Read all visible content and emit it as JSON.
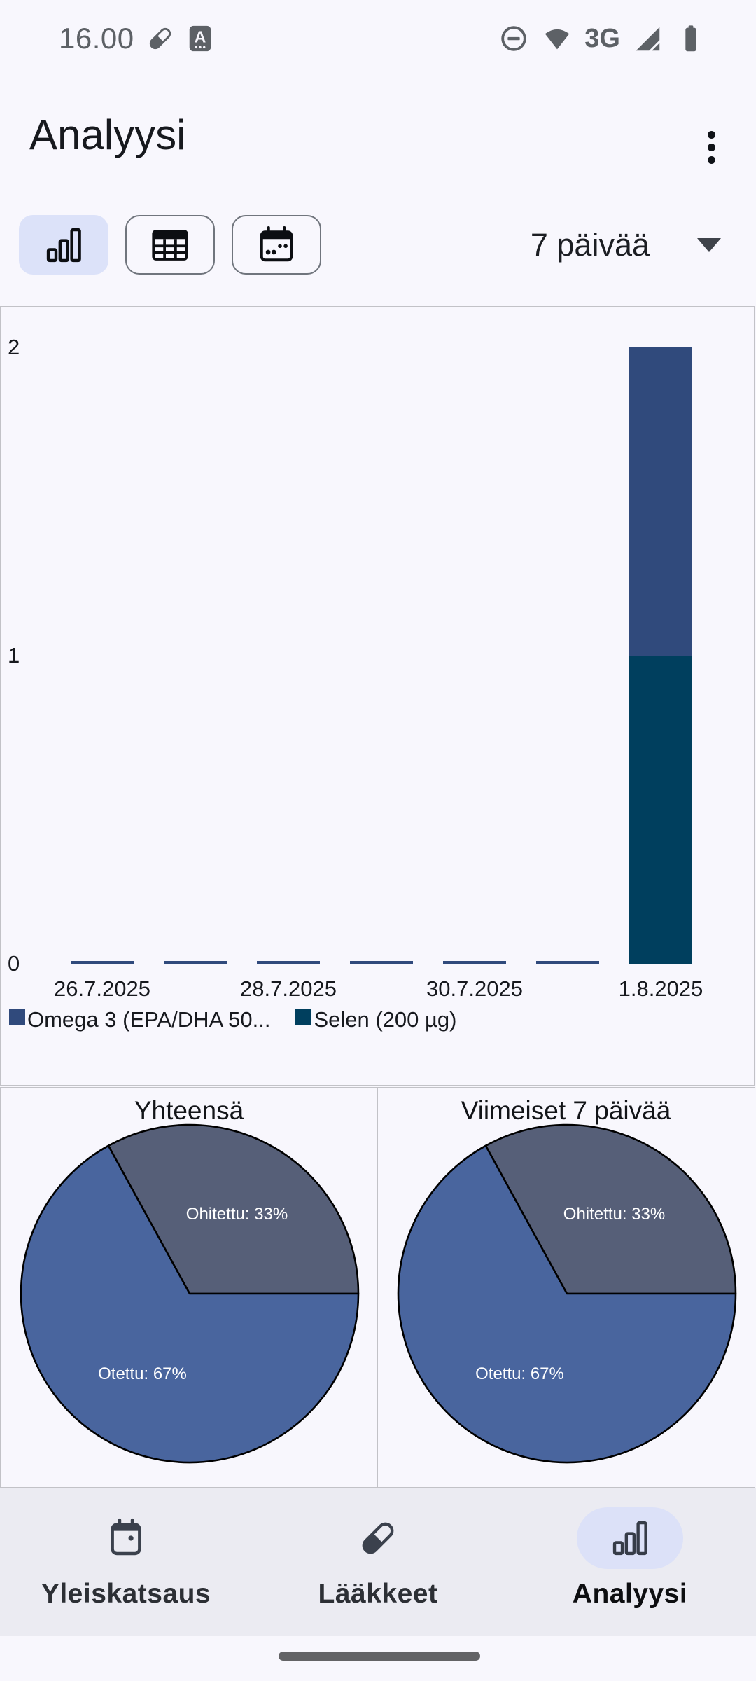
{
  "status_bar": {
    "time": "16.00",
    "network": "3G"
  },
  "header": {
    "title": "Analyysi"
  },
  "controls": {
    "toggles": [
      {
        "name": "bar-chart-view",
        "icon": "bar-chart-icon",
        "selected": true
      },
      {
        "name": "table-view",
        "icon": "table-icon",
        "selected": false
      },
      {
        "name": "calendar-view",
        "icon": "calendar-icon",
        "selected": false
      }
    ],
    "range_dropdown": {
      "value": "7 päivää"
    }
  },
  "chart_data": [
    {
      "type": "bar",
      "stacked": true,
      "x": [
        "26.7.2025",
        "27.7.2025",
        "28.7.2025",
        "29.7.2025",
        "30.7.2025",
        "31.7.2025",
        "1.8.2025"
      ],
      "x_tick_labels": [
        "26.7.2025",
        "28.7.2025",
        "30.7.2025",
        "1.8.2025"
      ],
      "series": [
        {
          "name": "Omega 3 (EPA/DHA 50...",
          "color": "#304a7c",
          "values": [
            0,
            0,
            0,
            0,
            0,
            0,
            1
          ]
        },
        {
          "name": "Selen (200 µg)",
          "color": "#003f5e",
          "values": [
            0,
            0,
            0,
            0,
            0,
            0,
            1
          ]
        }
      ],
      "ylim": [
        0,
        2
      ],
      "yticks": [
        0,
        1,
        2
      ],
      "grid": false,
      "legend_position": "bottom"
    },
    {
      "type": "pie",
      "title": "Yhteensä",
      "start_angle": 0,
      "direction": "counterclockwise",
      "slices": [
        {
          "label": "Ohitettu",
          "pct": 33,
          "color": "#565f78",
          "text": "Ohitettu: 33%"
        },
        {
          "label": "Otettu",
          "pct": 67,
          "color": "#49659e",
          "text": "Otettu: 67%"
        }
      ]
    },
    {
      "type": "pie",
      "title": "Viimeiset 7 päivää",
      "start_angle": 0,
      "direction": "counterclockwise",
      "slices": [
        {
          "label": "Ohitettu",
          "pct": 33,
          "color": "#565f78",
          "text": "Ohitettu: 33%"
        },
        {
          "label": "Otettu",
          "pct": 67,
          "color": "#49659e",
          "text": "Otettu: 67%"
        }
      ]
    }
  ],
  "bottom_nav": {
    "items": [
      {
        "label": "Yleiskatsaus",
        "icon": "calendar-icon",
        "selected": false
      },
      {
        "label": "Lääkkeet",
        "icon": "pill-icon",
        "selected": false
      },
      {
        "label": "Analyysi",
        "icon": "bar-chart-icon",
        "selected": true
      }
    ]
  },
  "colors": {
    "app_background": "#f8f7fd",
    "nav_background": "#ebebf2",
    "selected_chip": "#dce2f9",
    "panel_border": "#c2c2c7"
  }
}
